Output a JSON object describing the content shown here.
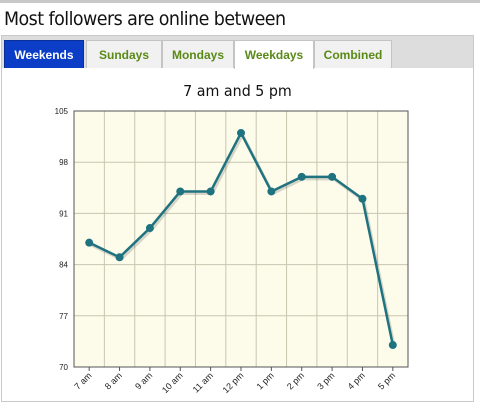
{
  "heading": "Most followers are online between",
  "tabs": [
    {
      "label": "Weekends",
      "state": "selected"
    },
    {
      "label": "Sundays",
      "state": "normal"
    },
    {
      "label": "Mondays",
      "state": "normal"
    },
    {
      "label": "Weekdays",
      "state": "current"
    },
    {
      "label": "Combined",
      "state": "normal"
    }
  ],
  "colors": {
    "line": "#1f7380",
    "plot_background": "#fdfbea",
    "grid": "#c9c6b0",
    "tab_selected": "#0b3dc6",
    "tab_text": "#5a8a16"
  },
  "chart_data": {
    "type": "line",
    "title": "7 am and 5 pm",
    "categories": [
      "7 am",
      "8 am",
      "9 am",
      "10 am",
      "11 am",
      "12 pm",
      "1 pm",
      "2 pm",
      "3 pm",
      "4 pm",
      "5 pm"
    ],
    "series": [
      {
        "values": [
          87,
          85,
          89,
          94,
          94,
          102,
          94,
          96,
          96,
          93,
          73
        ]
      }
    ],
    "yticks": [
      70,
      77,
      84,
      91,
      98,
      105
    ],
    "ylim": [
      70,
      105
    ],
    "grid": true,
    "legend": "none"
  }
}
